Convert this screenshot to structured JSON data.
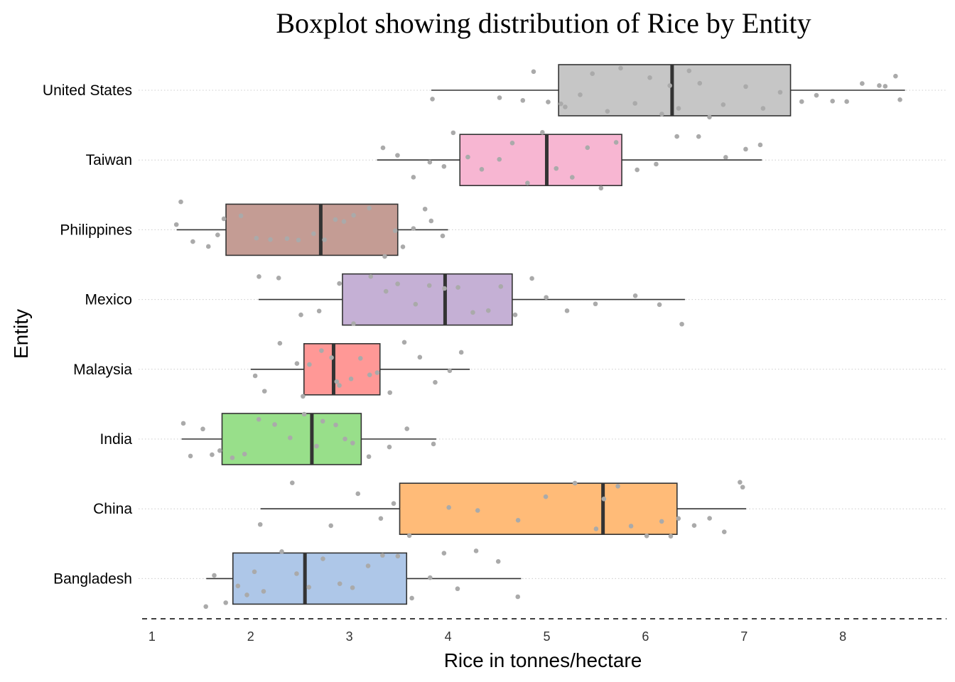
{
  "chart_data": {
    "type": "boxplot",
    "title": "Boxplot showing distribution of Rice by Entity",
    "xlabel": "Rice in tonnes/hectare",
    "ylabel": "Entity",
    "xlim": [
      0.9,
      9.05
    ],
    "x_ticks": [
      1,
      2,
      3,
      4,
      5,
      6,
      7,
      8
    ],
    "orientation": "horizontal",
    "grid": "horizontal dotted at categories",
    "baseline": "dashed",
    "point_color": "#aaaaaa",
    "categories": [
      "United States",
      "Taiwan",
      "Philippines",
      "Mexico",
      "Malaysia",
      "India",
      "China",
      "Bangladesh"
    ],
    "boxes": [
      {
        "name": "United States",
        "whisker_low": 3.83,
        "q1": 5.12,
        "median": 6.27,
        "q3": 7.47,
        "whisker_high": 8.63,
        "color": "#c6c6c6",
        "points": [
          3.85,
          4.5,
          4.75,
          4.85,
          5.0,
          5.15,
          5.2,
          5.35,
          5.45,
          5.6,
          5.75,
          5.9,
          6.05,
          6.15,
          6.25,
          6.35,
          6.45,
          6.55,
          6.65,
          6.8,
          7.0,
          7.2,
          7.35,
          7.6,
          7.75,
          7.9,
          8.05,
          8.2,
          8.35,
          8.45,
          8.55,
          8.6
        ]
      },
      {
        "name": "Taiwan",
        "whisker_low": 3.28,
        "q1": 4.12,
        "median": 5.0,
        "q3": 5.76,
        "whisker_high": 7.18,
        "color": "#f7b6d2",
        "points": [
          3.35,
          3.5,
          3.65,
          3.8,
          3.95,
          4.05,
          4.2,
          4.35,
          4.5,
          4.65,
          4.8,
          4.95,
          5.1,
          5.25,
          5.4,
          5.55,
          5.7,
          5.9,
          6.1,
          6.3,
          6.55,
          6.8,
          7.0,
          7.15
        ]
      },
      {
        "name": "Philippines",
        "whisker_low": 1.25,
        "q1": 1.75,
        "median": 2.71,
        "q3": 3.49,
        "whisker_high": 4.0,
        "color": "#c49c94",
        "points": [
          1.25,
          1.3,
          1.4,
          1.55,
          1.65,
          1.75,
          1.9,
          2.05,
          2.2,
          2.35,
          2.5,
          2.65,
          2.75,
          2.85,
          2.95,
          3.05,
          3.2,
          3.35,
          3.45,
          3.55,
          3.65,
          3.75,
          3.85,
          3.95
        ]
      },
      {
        "name": "Mexico",
        "whisker_low": 2.08,
        "q1": 2.93,
        "median": 3.97,
        "q3": 4.65,
        "whisker_high": 6.4,
        "color": "#c5b0d5",
        "points": [
          2.1,
          2.3,
          2.5,
          2.7,
          2.9,
          3.05,
          3.2,
          3.35,
          3.5,
          3.65,
          3.8,
          3.95,
          4.1,
          4.25,
          4.4,
          4.55,
          4.7,
          4.85,
          5.0,
          5.2,
          5.5,
          5.9,
          6.15,
          6.35
        ]
      },
      {
        "name": "Malaysia",
        "whisker_low": 2.0,
        "q1": 2.54,
        "median": 2.84,
        "q3": 3.31,
        "whisker_high": 4.22,
        "color": "#ff9896",
        "points": [
          2.05,
          2.15,
          2.3,
          2.45,
          2.55,
          2.6,
          2.7,
          2.8,
          2.85,
          2.9,
          3.0,
          3.1,
          3.2,
          3.3,
          3.4,
          3.55,
          3.7,
          3.85,
          4.0,
          4.15
        ]
      },
      {
        "name": "India",
        "whisker_low": 1.3,
        "q1": 1.71,
        "median": 2.62,
        "q3": 3.12,
        "whisker_high": 3.88,
        "color": "#98df8a",
        "points": [
          1.3,
          1.4,
          1.5,
          1.6,
          1.7,
          1.8,
          1.95,
          2.1,
          2.25,
          2.4,
          2.55,
          2.65,
          2.75,
          2.85,
          2.95,
          3.05,
          3.2,
          3.4,
          3.6,
          3.85
        ]
      },
      {
        "name": "China",
        "whisker_low": 2.1,
        "q1": 3.51,
        "median": 5.57,
        "q3": 6.32,
        "whisker_high": 7.02,
        "color": "#ffbb78",
        "points": [
          2.1,
          2.4,
          2.8,
          3.1,
          3.3,
          3.45,
          3.6,
          4.0,
          4.3,
          4.7,
          5.0,
          5.3,
          5.5,
          5.6,
          5.7,
          5.85,
          6.0,
          6.15,
          6.25,
          6.35,
          6.5,
          6.65,
          6.8,
          6.95,
          7.0
        ]
      },
      {
        "name": "Bangladesh",
        "whisker_low": 1.55,
        "q1": 1.82,
        "median": 2.55,
        "q3": 3.58,
        "whisker_high": 4.74,
        "color": "#aec7e8",
        "points": [
          1.55,
          1.65,
          1.75,
          1.85,
          1.95,
          2.05,
          2.15,
          2.3,
          2.45,
          2.6,
          2.75,
          2.9,
          3.05,
          3.2,
          3.35,
          3.5,
          3.65,
          3.8,
          3.95,
          4.1,
          4.3,
          4.5,
          4.7
        ]
      }
    ]
  }
}
